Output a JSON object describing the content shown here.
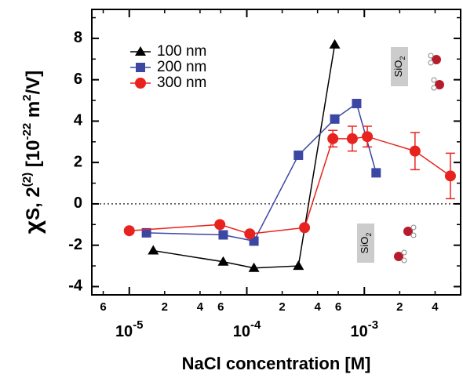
{
  "chart_data": {
    "type": "line",
    "xlabel": "NaCl concentration [M]",
    "ylabel": [
      {
        "text": "χ",
        "shift": "normal"
      },
      {
        "text": "S, 2",
        "shift": "normal"
      },
      {
        "text": "(2)",
        "shift": "sup"
      },
      {
        "text": " [10",
        "shift": "normal"
      },
      {
        "text": "-22",
        "shift": "sup"
      },
      {
        "text": " m",
        "shift": "normal"
      },
      {
        "text": "2",
        "shift": "sup"
      },
      {
        "text": "/V]",
        "shift": "normal"
      }
    ],
    "xscale": "log",
    "xlim": [
      4.8e-06,
      0.0066
    ],
    "ylim": [
      -4.4,
      9.4
    ],
    "xticks": [
      {
        "value": 1e-05,
        "label": "10",
        "exponent": "-5"
      },
      {
        "value": 0.0001,
        "label": "10",
        "exponent": "-4"
      },
      {
        "value": 0.001,
        "label": "10",
        "exponent": "-3"
      }
    ],
    "xminorticks": [
      {
        "value": 6e-06,
        "label": "6"
      },
      {
        "value": 2e-05,
        "label": "2"
      },
      {
        "value": 4e-05,
        "label": "4"
      },
      {
        "value": 6e-05,
        "label": "6"
      },
      {
        "value": 0.0002,
        "label": "2"
      },
      {
        "value": 0.0004,
        "label": "4"
      },
      {
        "value": 0.0006,
        "label": "6"
      },
      {
        "value": 0.002,
        "label": "2"
      },
      {
        "value": 0.004,
        "label": "4"
      }
    ],
    "yticks": [
      -4,
      -2,
      0,
      2,
      4,
      6,
      8
    ],
    "yminorticks": [
      -3,
      -1,
      1,
      3,
      5,
      7,
      9
    ],
    "hline": 0,
    "legend": "upper left",
    "series": [
      {
        "name": "100 nm",
        "color": "#000000",
        "marker": "triangle",
        "x": [
          1.6e-05,
          6.3e-05,
          0.000115,
          0.000275,
          0.00056
        ],
        "values": [
          -2.26,
          -2.8,
          -3.1,
          -3.0,
          7.7
        ]
      },
      {
        "name": "200 nm",
        "color": "#3b47a3",
        "marker": "square",
        "x": [
          1.4e-05,
          6.3e-05,
          0.000115,
          0.000275,
          0.00056,
          0.00086,
          0.00126
        ],
        "values": [
          -1.4,
          -1.5,
          -1.8,
          2.35,
          4.1,
          4.85,
          1.5
        ]
      },
      {
        "name": "300 nm",
        "color": "#e8231f",
        "marker": "circle",
        "x": [
          1e-05,
          5.9e-05,
          0.000106,
          0.00031,
          0.00054,
          0.00079,
          0.00106,
          0.0027,
          0.0054
        ],
        "values": [
          -1.3,
          -1.0,
          -1.45,
          -1.15,
          3.15,
          3.15,
          3.25,
          2.55,
          1.35
        ],
        "errors": [
          null,
          null,
          null,
          null,
          0.4,
          0.6,
          0.5,
          0.9,
          1.1
        ]
      }
    ],
    "annotations": [
      {
        "text": "SiO",
        "sub": "2"
      },
      {
        "text": "SiO",
        "sub": "2"
      }
    ]
  }
}
